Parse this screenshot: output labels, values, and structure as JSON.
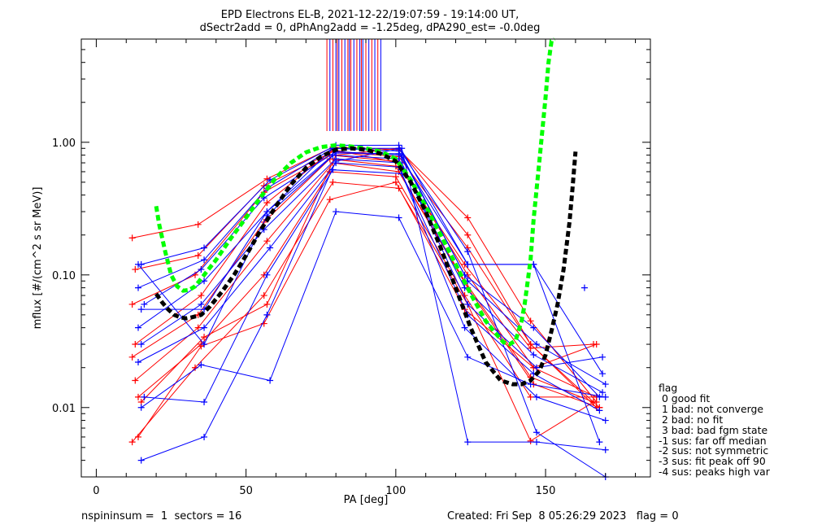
{
  "chart_data": {
    "type": "line",
    "title": "EPD Electrons EL-B, 2021-12-22/19:07:59 - 19:14:00 UT,",
    "subtitle": "dSectr2add = 0, dPhAng2add = -1.25deg, dPA290_est=  -0.0deg",
    "xlabel": "PA [deg]",
    "ylabel": "mflux [#/(cm^2 s sr MeV)]",
    "xlim": [
      -5,
      185
    ],
    "ylim": [
      0.003,
      6.0
    ],
    "yscale": "log",
    "grid": false,
    "x_ticks": [
      0,
      50,
      100,
      150
    ],
    "x_tick_labels": [
      "0",
      "50",
      "100",
      "150"
    ],
    "y_ticks": [
      0.01,
      0.1,
      1.0
    ],
    "y_tick_labels": [
      "0.01",
      "0.10",
      "1.00"
    ],
    "colors": {
      "red": "#ff0000",
      "blue": "#0000ff",
      "green": "#00ff00",
      "black": "#000000"
    },
    "series": [
      {
        "color": "red",
        "x": [
          12,
          34,
          57,
          79,
          101,
          124,
          145,
          167
        ],
        "y": [
          0.19,
          0.24,
          0.53,
          0.92,
          0.88,
          0.27,
          0.045,
          0.011
        ]
      },
      {
        "color": "red",
        "x": [
          13,
          34,
          56,
          79,
          101,
          124,
          145,
          168
        ],
        "y": [
          0.11,
          0.14,
          0.47,
          0.85,
          0.78,
          0.16,
          0.03,
          0.01
        ]
      },
      {
        "color": "red",
        "x": [
          12,
          33,
          56,
          78,
          100,
          123,
          145,
          166
        ],
        "y": [
          0.06,
          0.1,
          0.42,
          0.8,
          0.72,
          0.12,
          0.028,
          0.03
        ]
      },
      {
        "color": "red",
        "x": [
          13,
          35,
          57,
          79,
          101,
          124,
          146,
          167
        ],
        "y": [
          0.03,
          0.07,
          0.35,
          0.88,
          0.7,
          0.1,
          0.02,
          0.012
        ]
      },
      {
        "color": "red",
        "x": [
          12,
          34,
          56,
          78,
          100,
          123,
          145,
          166
        ],
        "y": [
          0.024,
          0.05,
          0.25,
          0.75,
          0.66,
          0.09,
          0.017,
          0.011
        ]
      },
      {
        "color": "red",
        "x": [
          13,
          34,
          57,
          79,
          101,
          124,
          146,
          168
        ],
        "y": [
          0.016,
          0.04,
          0.18,
          0.7,
          0.6,
          0.08,
          0.015,
          0.01
        ]
      },
      {
        "color": "red",
        "x": [
          14,
          35,
          56,
          78,
          100,
          123,
          145,
          167
        ],
        "y": [
          0.012,
          0.03,
          0.1,
          0.6,
          0.55,
          0.07,
          0.012,
          0.012
        ]
      },
      {
        "color": "red",
        "x": [
          12,
          33,
          56,
          79,
          101,
          124,
          145,
          166
        ],
        "y": [
          0.0055,
          0.02,
          0.07,
          0.5,
          0.45,
          0.06,
          0.0056,
          0.011
        ]
      },
      {
        "color": "red",
        "x": [
          14,
          35,
          56,
          78,
          100,
          123,
          146,
          167
        ],
        "y": [
          0.006,
          0.029,
          0.043,
          0.37,
          0.5,
          0.055,
          0.02,
          0.03
        ]
      },
      {
        "color": "red",
        "x": [
          15,
          36,
          57,
          80,
          101,
          124,
          145,
          167
        ],
        "y": [
          0.011,
          0.034,
          0.06,
          0.8,
          0.9,
          0.2,
          0.03,
          0.01
        ]
      },
      {
        "color": "blue",
        "x": [
          15,
          36,
          58,
          80,
          101,
          124,
          146,
          169
        ],
        "y": [
          0.12,
          0.16,
          0.52,
          0.95,
          0.95,
          0.12,
          0.12,
          0.018
        ]
      },
      {
        "color": "blue",
        "x": [
          14,
          36,
          57,
          79,
          101,
          123,
          146,
          168
        ],
        "y": [
          0.08,
          0.13,
          0.45,
          0.9,
          0.86,
          0.1,
          0.04,
          0.012
        ]
      },
      {
        "color": "blue",
        "x": [
          16,
          35,
          56,
          80,
          102,
          124,
          147,
          170
        ],
        "y": [
          0.06,
          0.11,
          0.38,
          0.85,
          0.8,
          0.09,
          0.03,
          0.015
        ]
      },
      {
        "color": "blue",
        "x": [
          14,
          36,
          57,
          79,
          101,
          123,
          146,
          169
        ],
        "y": [
          0.04,
          0.09,
          0.3,
          0.8,
          0.75,
          0.08,
          0.025,
          0.013
        ]
      },
      {
        "color": "blue",
        "x": [
          15,
          35,
          56,
          80,
          102,
          124,
          147,
          169
        ],
        "y": [
          0.03,
          0.06,
          0.22,
          0.75,
          0.7,
          0.06,
          0.02,
          0.024
        ]
      },
      {
        "color": "blue",
        "x": [
          14,
          36,
          58,
          80,
          101,
          124,
          146,
          168
        ],
        "y": [
          0.022,
          0.04,
          0.16,
          0.7,
          0.65,
          0.05,
          0.018,
          0.0095
        ]
      },
      {
        "color": "blue",
        "x": [
          16,
          36,
          57,
          79,
          102,
          123,
          147,
          170
        ],
        "y": [
          0.012,
          0.011,
          0.1,
          0.62,
          0.58,
          0.04,
          0.012,
          0.008
        ]
      },
      {
        "color": "blue",
        "x": [
          15,
          35,
          58,
          80,
          101,
          124,
          145,
          170
        ],
        "y": [
          0.01,
          0.021,
          0.016,
          0.3,
          0.27,
          0.024,
          0.015,
          0.012
        ]
      },
      {
        "color": "blue",
        "x": [
          15,
          36,
          57,
          80,
          102,
          124,
          147,
          170
        ],
        "y": [
          0.004,
          0.006,
          0.05,
          0.72,
          0.9,
          0.0055,
          0.0055,
          0.0048
        ]
      },
      {
        "color": "blue",
        "x": [
          14,
          36,
          57,
          80,
          101,
          124,
          146,
          168
        ],
        "y": [
          0.12,
          0.03,
          0.28,
          0.83,
          0.82,
          0.12,
          0.12,
          0.0055
        ]
      },
      {
        "color": "blue",
        "x": [
          15,
          36,
          57,
          79,
          101,
          124,
          147,
          170
        ],
        "y": [
          0.055,
          0.055,
          0.3,
          0.9,
          0.9,
          0.15,
          0.0065,
          0.003
        ]
      }
    ],
    "fits": [
      {
        "name": "green-dashed-fit",
        "color": "green",
        "x": [
          20,
          21,
          23,
          25,
          27,
          29,
          31,
          33,
          36,
          40,
          45,
          50,
          55,
          60,
          65,
          70,
          75,
          80,
          85,
          90,
          95,
          100,
          105,
          110,
          115,
          120,
          125,
          130,
          133,
          136,
          138,
          140,
          142,
          143,
          145,
          146,
          148,
          150,
          151,
          152,
          153
        ],
        "y": [
          0.33,
          0.24,
          0.15,
          0.1,
          0.082,
          0.076,
          0.077,
          0.082,
          0.1,
          0.13,
          0.19,
          0.27,
          0.39,
          0.54,
          0.7,
          0.84,
          0.92,
          0.95,
          0.93,
          0.9,
          0.85,
          0.75,
          0.52,
          0.33,
          0.2,
          0.12,
          0.072,
          0.045,
          0.037,
          0.031,
          0.03,
          0.032,
          0.045,
          0.06,
          0.13,
          0.26,
          0.75,
          2.2,
          4.0,
          5.8,
          6.0
        ]
      },
      {
        "name": "black-dashed-fit",
        "color": "black",
        "x": [
          20,
          22,
          24,
          26,
          28,
          30,
          32,
          35,
          38,
          42,
          46,
          50,
          55,
          60,
          65,
          70,
          75,
          80,
          85,
          90,
          95,
          100,
          105,
          110,
          115,
          120,
          125,
          130,
          135,
          139,
          142,
          145,
          148,
          150,
          152,
          154,
          156,
          158,
          159,
          160
        ],
        "y": [
          0.072,
          0.062,
          0.055,
          0.05,
          0.048,
          0.047,
          0.048,
          0.05,
          0.058,
          0.075,
          0.1,
          0.14,
          0.22,
          0.33,
          0.48,
          0.64,
          0.78,
          0.88,
          0.9,
          0.88,
          0.82,
          0.72,
          0.5,
          0.3,
          0.16,
          0.08,
          0.04,
          0.022,
          0.016,
          0.015,
          0.015,
          0.016,
          0.019,
          0.025,
          0.038,
          0.06,
          0.11,
          0.25,
          0.45,
          0.85
        ]
      },
      {
        "name": "outlier-blue-point",
        "color": "blue",
        "x": [
          163
        ],
        "y": [
          0.08
        ]
      }
    ]
  },
  "sector_marks": {
    "comment_free": true,
    "colors": [
      "#ff0000",
      "#0000ff"
    ],
    "pa": [
      77,
      78,
      79,
      80,
      80.5,
      81,
      82,
      83,
      84,
      84.5,
      85,
      86,
      87,
      88,
      88.5,
      89,
      90,
      91,
      92,
      93,
      94,
      95
    ]
  },
  "legend": {
    "title": "flag",
    "rows": [
      " 0 good fit",
      " 1 bad: not converge",
      " 2 bad: no fit",
      " 3 bad: bad fgm state",
      "-1 sus: far off median",
      "-2 sus: not symmetric",
      "-3 sus: fit peak off 90",
      "-4 sus: peaks high var"
    ]
  },
  "footer": {
    "left": "nspininsum =  1  sectors = 16",
    "right": "Created: Fri Sep  8 05:26:29 2023   flag = 0"
  }
}
